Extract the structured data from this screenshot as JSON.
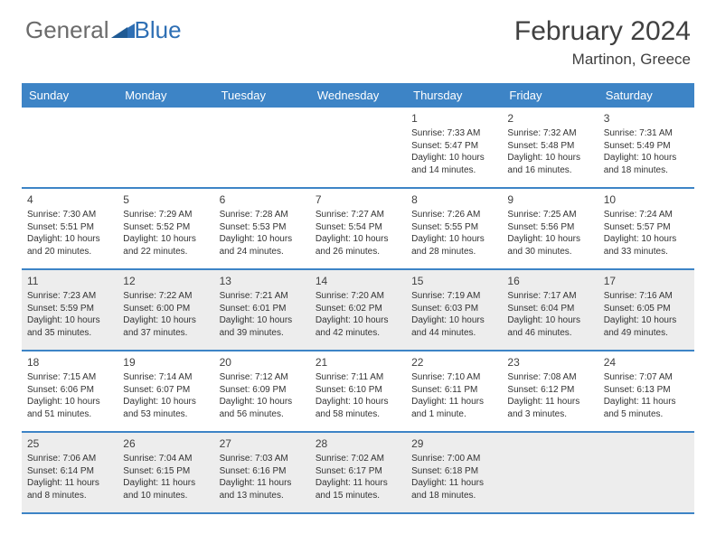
{
  "logo": {
    "part1": "General",
    "part2": "Blue"
  },
  "title": {
    "month": "February 2024",
    "location": "Martinon, Greece"
  },
  "colors": {
    "header_bar": "#3d84c6",
    "shade_bg": "#ededed",
    "logo_gray": "#6b6b6b",
    "logo_blue": "#2e6fb4",
    "text": "#333333",
    "divider": "#3d84c6"
  },
  "daysOfWeek": [
    "Sunday",
    "Monday",
    "Tuesday",
    "Wednesday",
    "Thursday",
    "Friday",
    "Saturday"
  ],
  "weeks": [
    [
      null,
      null,
      null,
      null,
      {
        "n": "1",
        "sr": "7:33 AM",
        "ss": "5:47 PM",
        "dl": "10 hours and 14 minutes."
      },
      {
        "n": "2",
        "sr": "7:32 AM",
        "ss": "5:48 PM",
        "dl": "10 hours and 16 minutes."
      },
      {
        "n": "3",
        "sr": "7:31 AM",
        "ss": "5:49 PM",
        "dl": "10 hours and 18 minutes."
      }
    ],
    [
      {
        "n": "4",
        "sr": "7:30 AM",
        "ss": "5:51 PM",
        "dl": "10 hours and 20 minutes."
      },
      {
        "n": "5",
        "sr": "7:29 AM",
        "ss": "5:52 PM",
        "dl": "10 hours and 22 minutes."
      },
      {
        "n": "6",
        "sr": "7:28 AM",
        "ss": "5:53 PM",
        "dl": "10 hours and 24 minutes."
      },
      {
        "n": "7",
        "sr": "7:27 AM",
        "ss": "5:54 PM",
        "dl": "10 hours and 26 minutes."
      },
      {
        "n": "8",
        "sr": "7:26 AM",
        "ss": "5:55 PM",
        "dl": "10 hours and 28 minutes."
      },
      {
        "n": "9",
        "sr": "7:25 AM",
        "ss": "5:56 PM",
        "dl": "10 hours and 30 minutes."
      },
      {
        "n": "10",
        "sr": "7:24 AM",
        "ss": "5:57 PM",
        "dl": "10 hours and 33 minutes."
      }
    ],
    [
      {
        "n": "11",
        "sr": "7:23 AM",
        "ss": "5:59 PM",
        "dl": "10 hours and 35 minutes."
      },
      {
        "n": "12",
        "sr": "7:22 AM",
        "ss": "6:00 PM",
        "dl": "10 hours and 37 minutes."
      },
      {
        "n": "13",
        "sr": "7:21 AM",
        "ss": "6:01 PM",
        "dl": "10 hours and 39 minutes."
      },
      {
        "n": "14",
        "sr": "7:20 AM",
        "ss": "6:02 PM",
        "dl": "10 hours and 42 minutes."
      },
      {
        "n": "15",
        "sr": "7:19 AM",
        "ss": "6:03 PM",
        "dl": "10 hours and 44 minutes."
      },
      {
        "n": "16",
        "sr": "7:17 AM",
        "ss": "6:04 PM",
        "dl": "10 hours and 46 minutes."
      },
      {
        "n": "17",
        "sr": "7:16 AM",
        "ss": "6:05 PM",
        "dl": "10 hours and 49 minutes."
      }
    ],
    [
      {
        "n": "18",
        "sr": "7:15 AM",
        "ss": "6:06 PM",
        "dl": "10 hours and 51 minutes."
      },
      {
        "n": "19",
        "sr": "7:14 AM",
        "ss": "6:07 PM",
        "dl": "10 hours and 53 minutes."
      },
      {
        "n": "20",
        "sr": "7:12 AM",
        "ss": "6:09 PM",
        "dl": "10 hours and 56 minutes."
      },
      {
        "n": "21",
        "sr": "7:11 AM",
        "ss": "6:10 PM",
        "dl": "10 hours and 58 minutes."
      },
      {
        "n": "22",
        "sr": "7:10 AM",
        "ss": "6:11 PM",
        "dl": "11 hours and 1 minute."
      },
      {
        "n": "23",
        "sr": "7:08 AM",
        "ss": "6:12 PM",
        "dl": "11 hours and 3 minutes."
      },
      {
        "n": "24",
        "sr": "7:07 AM",
        "ss": "6:13 PM",
        "dl": "11 hours and 5 minutes."
      }
    ],
    [
      {
        "n": "25",
        "sr": "7:06 AM",
        "ss": "6:14 PM",
        "dl": "11 hours and 8 minutes."
      },
      {
        "n": "26",
        "sr": "7:04 AM",
        "ss": "6:15 PM",
        "dl": "11 hours and 10 minutes."
      },
      {
        "n": "27",
        "sr": "7:03 AM",
        "ss": "6:16 PM",
        "dl": "11 hours and 13 minutes."
      },
      {
        "n": "28",
        "sr": "7:02 AM",
        "ss": "6:17 PM",
        "dl": "11 hours and 15 minutes."
      },
      {
        "n": "29",
        "sr": "7:00 AM",
        "ss": "6:18 PM",
        "dl": "11 hours and 18 minutes."
      },
      null,
      null
    ]
  ],
  "labels": {
    "sunrise": "Sunrise: ",
    "sunset": "Sunset: ",
    "daylight": "Daylight: "
  }
}
